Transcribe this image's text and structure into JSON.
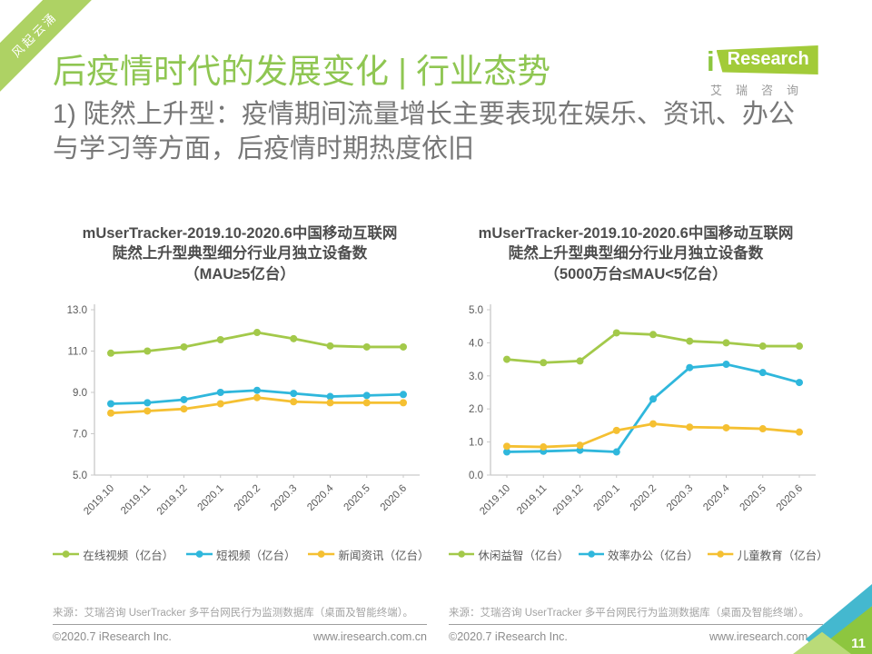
{
  "page": {
    "ribbon_text": "风起云涌",
    "title": "后疫情时代的发展变化 | 行业态势",
    "subtitle": "1) 陡然上升型：疫情期间流量增长主要表现在娱乐、资讯、办公与学习等方面，后疫情时期热度依旧",
    "page_number": "11"
  },
  "logo": {
    "brand_i": "i",
    "brand_name": "Research",
    "brand_cn": "艾瑞咨询"
  },
  "footer": {
    "source": "来源：艾瑞咨询 UserTracker 多平台网民行为监测数据库（桌面及智能终端）。",
    "copyright": "©2020.7 iResearch Inc.",
    "website": "www.iresearch.com.cn"
  },
  "colors": {
    "brand_green": "#8fc652",
    "ribbon_green": "#aed264",
    "line_green": "#a3c94a",
    "line_blue": "#2fb7dc",
    "line_yellow": "#f5c032"
  },
  "chart_data": [
    {
      "type": "line",
      "title": "mUserTracker-2019.10-2020.6中国移动互联网\n陡然上升型典型细分行业月独立设备数\n（MAU≥5亿台）",
      "categories": [
        "2019.10",
        "2019.11",
        "2019.12",
        "2020.1",
        "2020.2",
        "2020.3",
        "2020.4",
        "2020.5",
        "2020.6"
      ],
      "series": [
        {
          "name": "在线视频（亿台）",
          "color": "#a3c94a",
          "values": [
            10.9,
            11.0,
            11.2,
            11.55,
            11.9,
            11.6,
            11.25,
            11.2,
            11.2
          ]
        },
        {
          "name": "短视频（亿台）",
          "color": "#2fb7dc",
          "values": [
            8.45,
            8.5,
            8.65,
            9.0,
            9.1,
            8.95,
            8.8,
            8.85,
            8.9
          ]
        },
        {
          "name": "新闻资讯（亿台）",
          "color": "#f5c032",
          "values": [
            8.0,
            8.1,
            8.2,
            8.45,
            8.75,
            8.55,
            8.5,
            8.5,
            8.5
          ]
        }
      ],
      "ylim": [
        5,
        13
      ],
      "ytick_step": 2,
      "grid": false,
      "legend_position": "bottom"
    },
    {
      "type": "line",
      "title": "mUserTracker-2019.10-2020.6中国移动互联网\n陡然上升型典型细分行业月独立设备数\n（5000万台≤MAU<5亿台）",
      "categories": [
        "2019.10",
        "2019.11",
        "2019.12",
        "2020.1",
        "2020.2",
        "2020.3",
        "2020.4",
        "2020.5",
        "2020.6"
      ],
      "series": [
        {
          "name": "休闲益智（亿台）",
          "color": "#a3c94a",
          "values": [
            3.5,
            3.4,
            3.45,
            4.3,
            4.25,
            4.05,
            4.0,
            3.9,
            3.9
          ]
        },
        {
          "name": "效率办公（亿台）",
          "color": "#2fb7dc",
          "values": [
            0.7,
            0.72,
            0.75,
            0.7,
            2.3,
            3.25,
            3.35,
            3.1,
            2.8
          ]
        },
        {
          "name": "儿童教育（亿台）",
          "color": "#f5c032",
          "values": [
            0.87,
            0.85,
            0.9,
            1.35,
            1.55,
            1.45,
            1.43,
            1.4,
            1.3
          ]
        }
      ],
      "ylim": [
        0,
        5
      ],
      "ytick_step": 1,
      "grid": false,
      "legend_position": "bottom"
    }
  ]
}
